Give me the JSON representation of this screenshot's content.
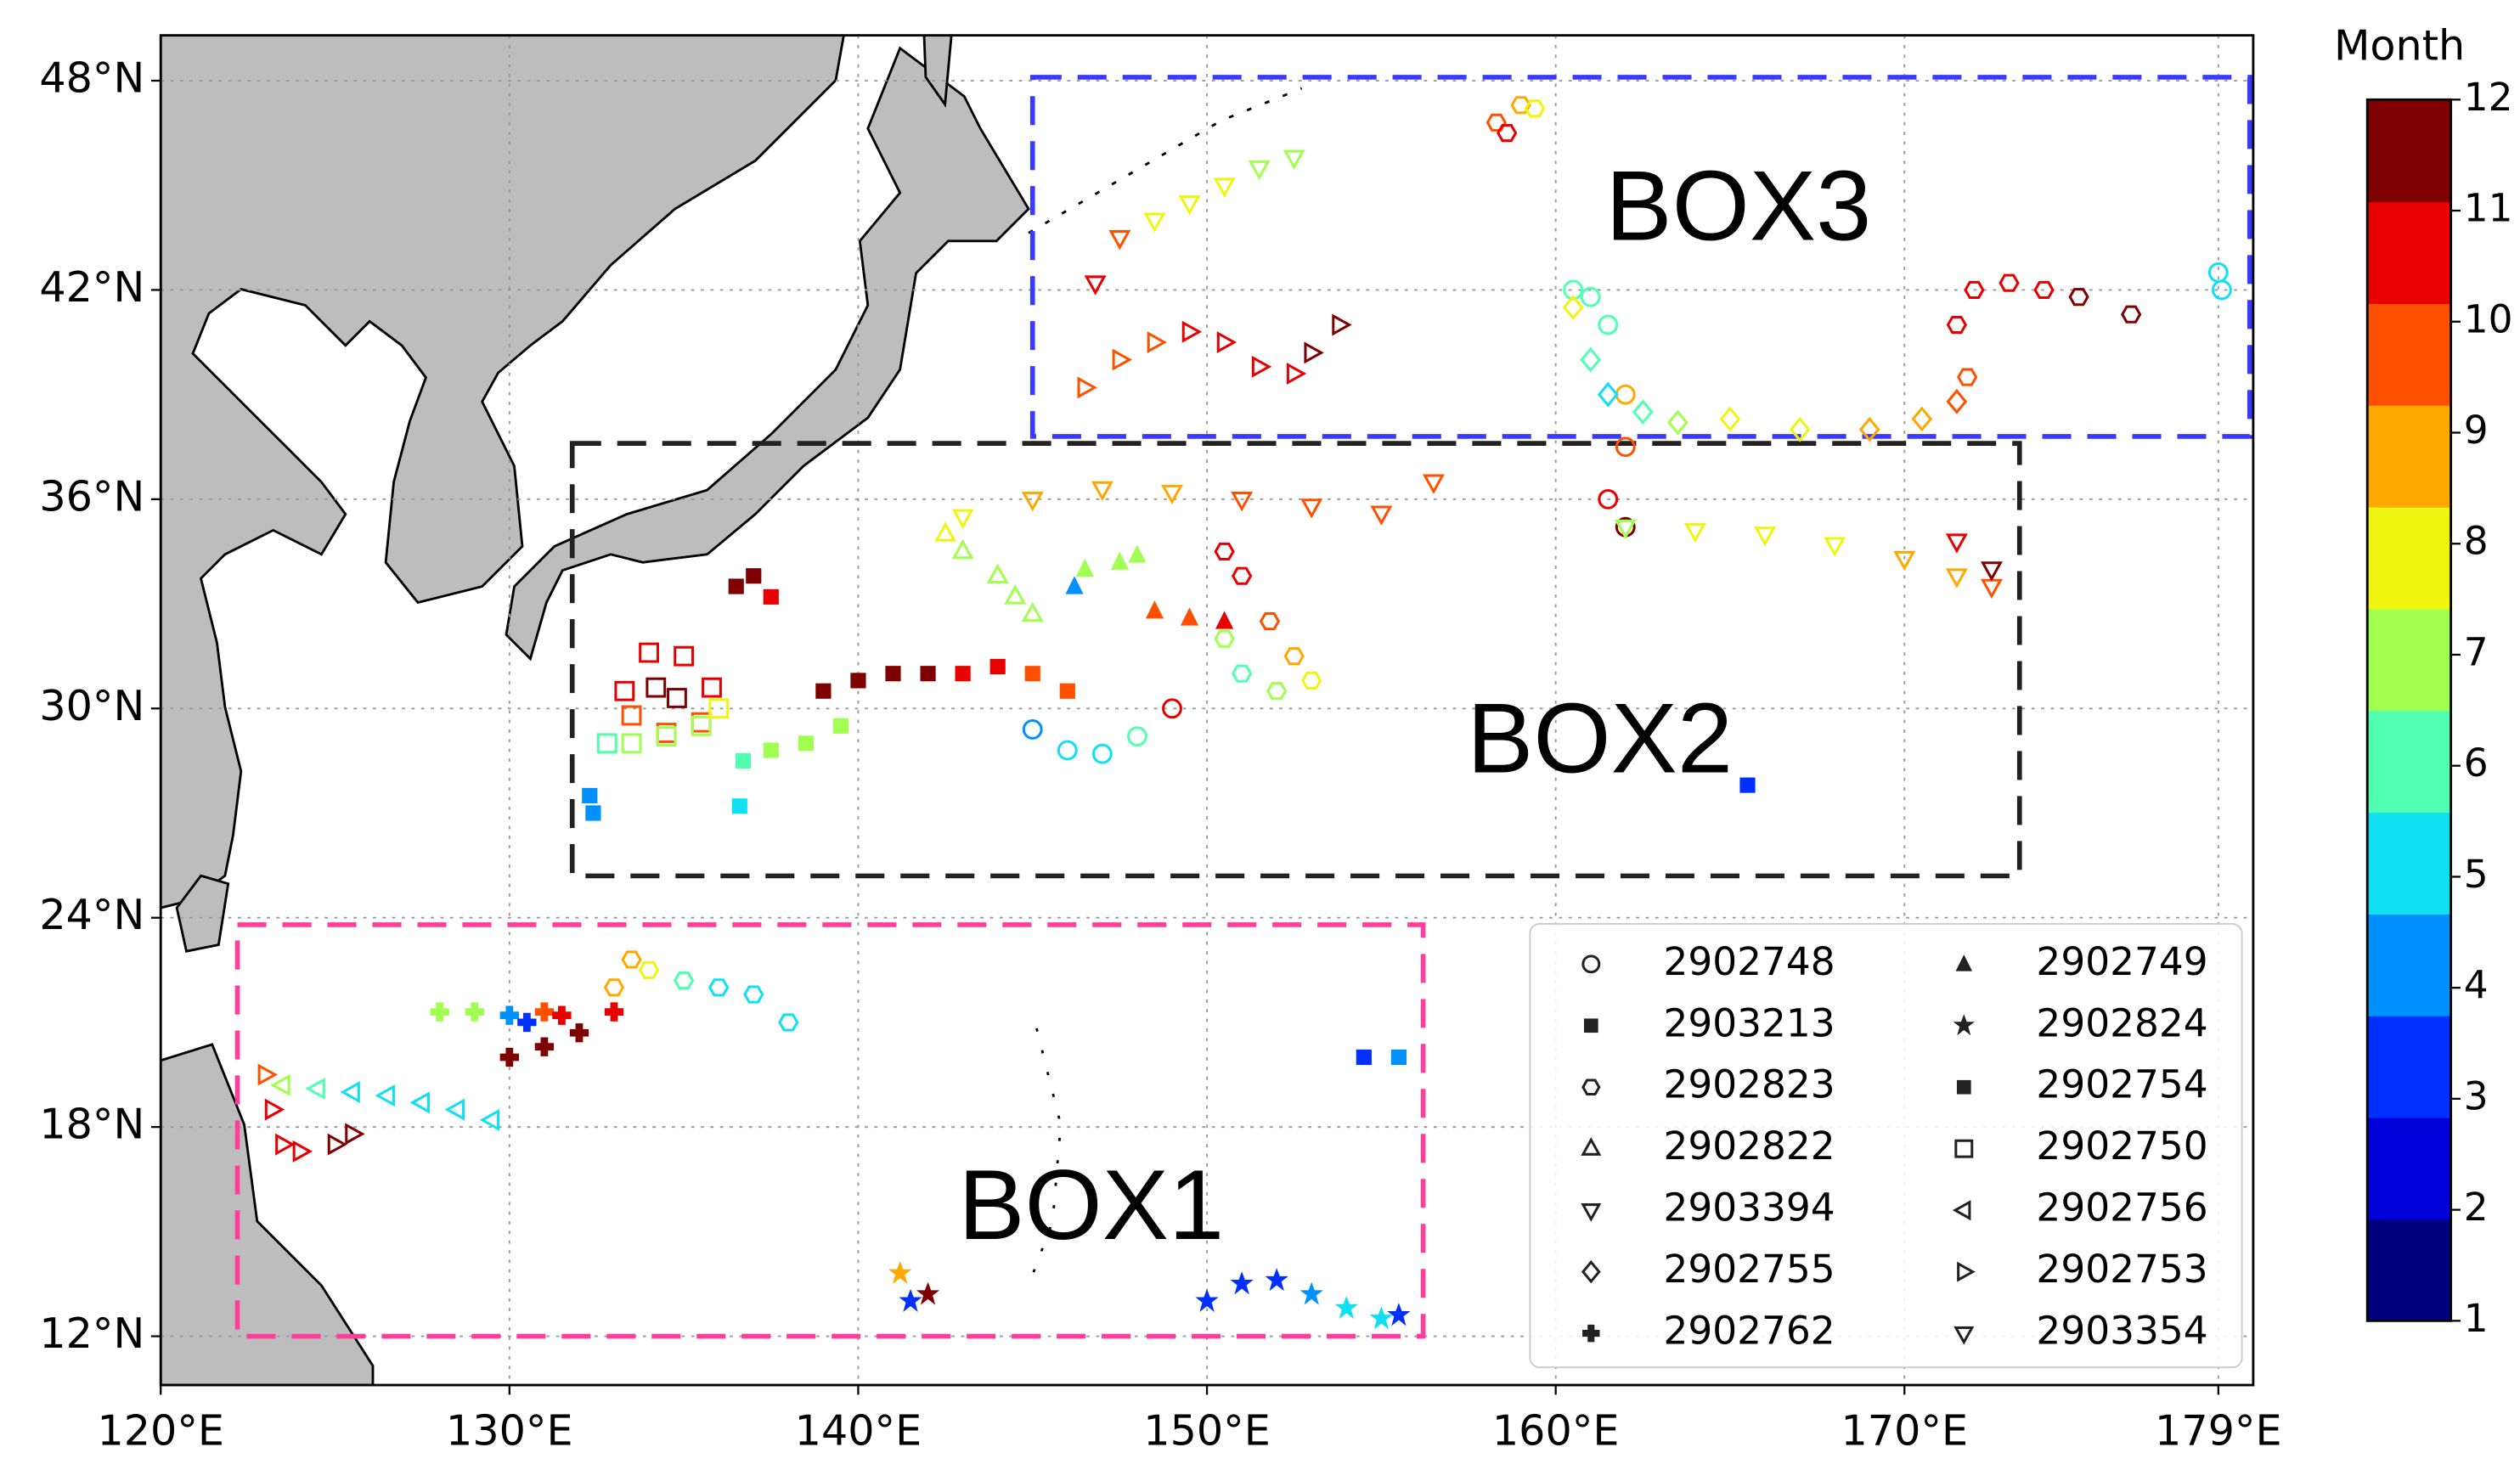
{
  "chart_data": {
    "type": "scatter",
    "xlim": [
      120,
      180
    ],
    "ylim": [
      10.6,
      49.3
    ],
    "xticks": [
      {
        "value": 120,
        "label": "120°E"
      },
      {
        "value": 130,
        "label": "130°E"
      },
      {
        "value": 140,
        "label": "140°E"
      },
      {
        "value": 150,
        "label": "150°E"
      },
      {
        "value": 160,
        "label": "160°E"
      },
      {
        "value": 170,
        "label": "170°E"
      },
      {
        "value": 179,
        "label": "179°E"
      }
    ],
    "yticks": [
      {
        "value": 12,
        "label": "12°N"
      },
      {
        "value": 18,
        "label": "18°N"
      },
      {
        "value": 24,
        "label": "24°N"
      },
      {
        "value": 30,
        "label": "30°N"
      },
      {
        "value": 36,
        "label": "36°N"
      },
      {
        "value": 42,
        "label": "42°N"
      },
      {
        "value": 48,
        "label": "48°N"
      }
    ],
    "grid": true,
    "legend_loc": "lower right",
    "colorbar": {
      "label": "Month",
      "lim": [
        1,
        12
      ],
      "ticks": [
        1,
        2,
        3,
        4,
        5,
        6,
        7,
        8,
        9,
        10,
        11,
        12
      ],
      "colors": [
        "#00007f",
        "#0000d8",
        "#0030ff",
        "#0090ff",
        "#10e0f0",
        "#50ffb0",
        "#a0ff50",
        "#f0f510",
        "#ffa800",
        "#ff5000",
        "#e80000",
        "#7f0000"
      ]
    },
    "boxes": [
      {
        "label": "BOX1",
        "lon": [
          122.2,
          156.2
        ],
        "lat": [
          12,
          23.8
        ],
        "color": "#ff3d9a"
      },
      {
        "label": "BOX2",
        "lon": [
          131.8,
          173.3
        ],
        "lat": [
          25.2,
          37.6
        ],
        "color": "#222222"
      },
      {
        "label": "BOX3",
        "lon": [
          145,
          179.9
        ],
        "lat": [
          37.8,
          48.1
        ],
        "color": "#3a3aff"
      }
    ],
    "floats": [
      {
        "id": "2902748",
        "marker": "o",
        "lon": [
          145,
          146,
          147,
          148,
          149,
          179,
          179.1,
          160.5,
          161,
          161.5,
          162,
          162,
          161.5,
          162
        ],
        "lat": [
          29.4,
          28.8,
          28.7,
          29.2,
          30,
          42.5,
          42,
          42,
          41.8,
          41,
          39,
          37.5,
          36,
          35.2
        ],
        "month": [
          4,
          5,
          5,
          6,
          11,
          5,
          5,
          6,
          6,
          6,
          9,
          10,
          11,
          12
        ]
      },
      {
        "id": "2903213",
        "marker": "sf",
        "lon": [
          139,
          140,
          141,
          142,
          143,
          144,
          145,
          146,
          136.5,
          137,
          137.5
        ],
        "lat": [
          30.5,
          30.8,
          31,
          31,
          31,
          31.2,
          31,
          30.5,
          33.5,
          33.8,
          33.2
        ],
        "month": [
          12,
          12,
          12,
          11.5,
          11,
          10.5,
          10,
          9.5,
          12,
          11.5,
          11
        ]
      },
      {
        "id": "2902823",
        "marker": "h",
        "lon": [
          133,
          133.5,
          134,
          135,
          136,
          137,
          138,
          158.3,
          158.6,
          159,
          159.4,
          171.8,
          171.5,
          172,
          173,
          174,
          175,
          176.5,
          150.5,
          151,
          151.8,
          152.5,
          153,
          152,
          151,
          150.5
        ],
        "lat": [
          22,
          22.8,
          22.5,
          22.2,
          22,
          21.8,
          21,
          46.8,
          46.5,
          47.3,
          47.2,
          39.5,
          41,
          42,
          42.2,
          42,
          41.8,
          41.3,
          34.5,
          33.8,
          32.5,
          31.5,
          30.8,
          30.5,
          31,
          32
        ],
        "month": [
          9,
          8.5,
          8,
          6,
          5.5,
          5.5,
          5.5,
          10,
          10.5,
          9,
          8,
          10,
          11,
          11,
          11,
          11,
          11.5,
          12,
          11,
          11,
          10,
          9,
          8,
          7,
          6,
          7
        ]
      },
      {
        "id": "2902822",
        "marker": "^",
        "lon": [
          142.5,
          143,
          144,
          144.5,
          145
        ],
        "lat": [
          35,
          34.5,
          33.8,
          33.2,
          32.7
        ],
        "month": [
          7.5,
          7,
          7,
          6.5,
          6.5
        ]
      },
      {
        "id": "2903394",
        "marker": "v",
        "lon": [
          143,
          145,
          147,
          149,
          151,
          153,
          155,
          156.5,
          162,
          164,
          166,
          168,
          170,
          171.5,
          172.5,
          171.5,
          172.5
        ],
        "lat": [
          35.5,
          36,
          36.3,
          36.2,
          36,
          35.8,
          35.6,
          36.5,
          35.2,
          35.1,
          35,
          34.7,
          34.3,
          33.8,
          33.5,
          34.8,
          34
        ],
        "month": [
          8,
          8.5,
          9,
          9,
          9.5,
          9.5,
          10,
          10,
          7,
          7.5,
          8,
          8,
          8.5,
          9,
          9.5,
          11,
          11.5
        ]
      },
      {
        "id": "2902755",
        "marker": "D",
        "lon": [
          160.5,
          161,
          161.5,
          162.5,
          163.5,
          165,
          167,
          169,
          170.5,
          171.5
        ],
        "lat": [
          41.5,
          40,
          39,
          38.5,
          38.2,
          38.3,
          38,
          38,
          38.3,
          38.8
        ],
        "month": [
          8,
          6,
          5,
          6,
          7,
          8,
          8,
          9,
          9,
          10
        ]
      },
      {
        "id": "2902762",
        "marker": "P",
        "lon": [
          128,
          129,
          130,
          130.5,
          131,
          131.5,
          130,
          131,
          132,
          133
        ],
        "lat": [
          21.3,
          21.3,
          21.2,
          21,
          21.3,
          21.2,
          20,
          20.3,
          20.7,
          21.3
        ],
        "month": [
          7,
          6.5,
          4,
          3,
          10,
          11,
          12,
          12,
          11.5,
          11
        ]
      },
      {
        "id": "2902749",
        "marker": "t",
        "lon": [
          146.5,
          147.5,
          148,
          146.2,
          148.5,
          149.5,
          150.5
        ],
        "lat": [
          34,
          34.2,
          34.4,
          33.5,
          32.8,
          32.6,
          32.5
        ],
        "month": [
          6.5,
          6.5,
          7,
          4,
          10,
          10,
          10.5
        ]
      },
      {
        "id": "2902824",
        "marker": "*",
        "lon": [
          141.2,
          141.5,
          142,
          150,
          151,
          152,
          153,
          154,
          155,
          155.5
        ],
        "lat": [
          13.8,
          13,
          13.2,
          13,
          13.5,
          13.6,
          13.2,
          12.8,
          12.5,
          12.6
        ],
        "month": [
          9,
          3,
          12,
          3,
          3,
          3,
          4.5,
          5,
          5,
          3
        ]
      },
      {
        "id": "2902754",
        "marker": "sf",
        "lon": [
          132.3,
          132.4,
          136.6,
          136.7,
          137.5,
          138.5,
          139.5,
          154.5,
          155.5,
          165.5
        ],
        "lat": [
          27.5,
          27,
          27.2,
          28.5,
          28.8,
          29,
          29.5,
          20,
          20,
          27.8
        ],
        "month": [
          4,
          4,
          5,
          6,
          6.5,
          6.5,
          6.5,
          3,
          4,
          3
        ]
      },
      {
        "id": "2902750",
        "marker": "s",
        "lon": [
          133.3,
          134,
          135,
          135.8,
          135.5,
          134.5,
          133.5,
          134.2,
          134.8,
          132.8,
          133.5,
          134.5,
          135.5,
          136
        ],
        "lat": [
          30.5,
          31.6,
          31.5,
          30.6,
          29.6,
          29.3,
          29.8,
          30.6,
          30.3,
          29,
          29,
          29.2,
          29.5,
          30
        ],
        "month": [
          11,
          11,
          11,
          11,
          10,
          10,
          10,
          12,
          12,
          6,
          6.5,
          7,
          7,
          7.5
        ]
      },
      {
        "id": "2902756",
        "marker": "<",
        "lon": [
          123.5,
          124.5,
          125.5,
          126.5,
          127.5,
          128.5,
          129.5
        ],
        "lat": [
          19.2,
          19.1,
          19,
          18.9,
          18.7,
          18.5,
          18.2
        ],
        "month": [
          7,
          6,
          5.5,
          5.5,
          5,
          5,
          5
        ]
      },
      {
        "id": "2902753",
        "marker": ">",
        "lon": [
          123,
          123.2,
          123.5,
          124,
          125,
          125.5,
          146.5,
          147.5,
          148.5,
          149.5,
          150.5,
          151.5,
          152.5,
          153,
          153.8
        ],
        "lat": [
          19.5,
          18.5,
          17.5,
          17.3,
          17.5,
          17.8,
          39.2,
          40,
          40.5,
          40.8,
          40.5,
          39.8,
          39.6,
          40.2,
          41
        ],
        "month": [
          10,
          11,
          11,
          11,
          12,
          12,
          10,
          10,
          10,
          10.5,
          11,
          11,
          11,
          11.5,
          12
        ]
      },
      {
        "id": "2903354",
        "marker": "v",
        "lon": [
          146.8,
          147.5,
          148.5,
          149.5,
          150.5,
          151.5,
          152.5
        ],
        "lat": [
          42.2,
          43.5,
          44,
          44.5,
          45,
          45.5,
          45.8
        ],
        "month": [
          11,
          10,
          8,
          7.5,
          7.5,
          7,
          7
        ]
      }
    ]
  }
}
